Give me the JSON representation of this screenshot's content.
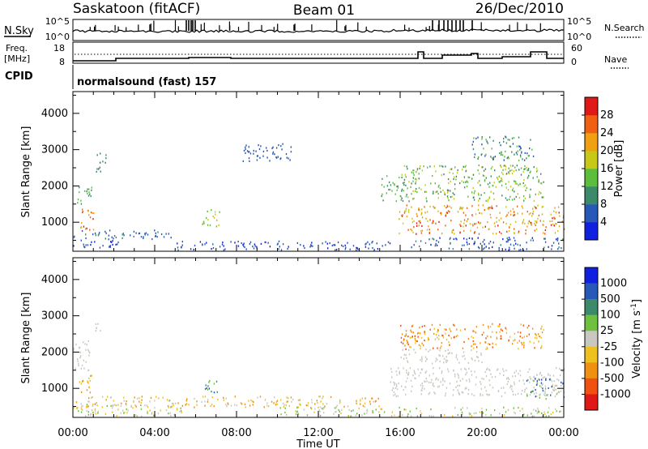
{
  "header": {
    "station": "Saskatoon (fitACF)",
    "beam": "Beam 01",
    "date": "26/Dec/2010"
  },
  "strip": {
    "nsky_label": "N.Sky",
    "nsky_ticks": [
      "10^5",
      "10^0"
    ],
    "nsearch_ticks": [
      "10^5",
      "10^0"
    ],
    "nsearch_label": "N.Search",
    "freq_label_1": "Freq.",
    "freq_label_2": "[MHz]",
    "freq_ticks": [
      "18",
      "8"
    ],
    "nave_ticks": [
      "60",
      "0"
    ],
    "nave_label": "Nave",
    "cpid_label": "CPID",
    "cpid_text": "normalsound (fast) 157"
  },
  "colors": {
    "power": [
      "#1020e0",
      "#2858b8",
      "#3c8a6a",
      "#5cbf3c",
      "#c8c818",
      "#f0a010",
      "#f06010",
      "#e01818"
    ],
    "velocity": [
      "#e01818",
      "#f05010",
      "#f09010",
      "#f0c020",
      "#c8c8c0",
      "#70c040",
      "#3c8a6a",
      "#2858b8",
      "#1020e0"
    ]
  },
  "chart_data": [
    {
      "type": "heatmap",
      "name": "power",
      "ylabel": "Slant Range [km]",
      "yticks": [
        "1000",
        "2000",
        "3000",
        "4000"
      ],
      "ylim": [
        200,
        4600
      ],
      "xlim": [
        0,
        24
      ],
      "colorbar_label": "Power [dB]",
      "colorbar_ticks": [
        "4",
        "8",
        "12",
        "16",
        "20",
        "24",
        "28"
      ],
      "colorbar_range": [
        0,
        32
      ],
      "regions": [
        {
          "t0": 0.0,
          "t1": 2.2,
          "r0": 300,
          "r1": 550,
          "v": [
            2,
            6
          ]
        },
        {
          "t0": 0.0,
          "t1": 5.0,
          "r0": 550,
          "r1": 800,
          "v": [
            4,
            9
          ]
        },
        {
          "t0": 0.2,
          "t1": 1.0,
          "r0": 800,
          "r1": 1400,
          "v": [
            18,
            30
          ]
        },
        {
          "t0": 0.2,
          "t1": 0.9,
          "r0": 1500,
          "r1": 2100,
          "v": [
            8,
            16
          ]
        },
        {
          "t0": 1.1,
          "t1": 1.6,
          "r0": 2400,
          "r1": 3000,
          "v": [
            6,
            12
          ]
        },
        {
          "t0": 6.3,
          "t1": 7.2,
          "r0": 900,
          "r1": 1400,
          "v": [
            12,
            22
          ]
        },
        {
          "t0": 5.0,
          "t1": 15.5,
          "r0": 250,
          "r1": 500,
          "v": [
            2,
            8
          ]
        },
        {
          "t0": 8.3,
          "t1": 10.8,
          "r0": 2700,
          "r1": 3200,
          "v": [
            4,
            8
          ]
        },
        {
          "t0": 15.0,
          "t1": 16.3,
          "r0": 1600,
          "r1": 2300,
          "v": [
            8,
            16
          ]
        },
        {
          "t0": 15.9,
          "t1": 24.0,
          "r0": 700,
          "r1": 1500,
          "v": [
            16,
            30
          ]
        },
        {
          "t0": 16.0,
          "t1": 23.0,
          "r0": 1600,
          "r1": 2600,
          "v": [
            8,
            20
          ]
        },
        {
          "t0": 16.5,
          "t1": 24.0,
          "r0": 250,
          "r1": 600,
          "v": [
            2,
            10
          ]
        },
        {
          "t0": 19.5,
          "t1": 22.5,
          "r0": 2700,
          "r1": 3400,
          "v": [
            6,
            14
          ]
        }
      ]
    },
    {
      "type": "heatmap",
      "name": "velocity",
      "ylabel": "Slant Range [km]",
      "yticks": [
        "1000",
        "2000",
        "3000",
        "4000"
      ],
      "ylim": [
        200,
        4600
      ],
      "xlim": [
        0,
        24
      ],
      "xticks": [
        "00:00",
        "04:00",
        "08:00",
        "12:00",
        "16:00",
        "20:00",
        "00:00"
      ],
      "xlabel": "Time UT",
      "colorbar_label": "Velocity [m s",
      "colorbar_label_sup": "-1",
      "colorbar_label_end": "]",
      "colorbar_ticks": [
        "1000",
        "500",
        "100",
        "25",
        "-25",
        "-100",
        "-500",
        "-1000"
      ],
      "regions": [
        {
          "t0": 0.0,
          "t1": 5.5,
          "r0": 250,
          "r1": 600,
          "c": [
            4,
            5,
            3
          ]
        },
        {
          "t0": 0.0,
          "t1": 15.0,
          "r0": 500,
          "r1": 800,
          "c": [
            3,
            4,
            2
          ]
        },
        {
          "t0": 0.2,
          "t1": 1.0,
          "r0": 900,
          "r1": 1400,
          "c": [
            2,
            3
          ]
        },
        {
          "t0": 0.0,
          "t1": 0.8,
          "r0": 1500,
          "r1": 2400,
          "c": [
            4
          ]
        },
        {
          "t0": 1.0,
          "t1": 1.4,
          "r0": 2600,
          "r1": 3000,
          "c": [
            4
          ]
        },
        {
          "t0": 6.4,
          "t1": 7.1,
          "r0": 900,
          "r1": 1350,
          "c": [
            6,
            7,
            5
          ]
        },
        {
          "t0": 15.5,
          "t1": 24.0,
          "r0": 800,
          "r1": 1600,
          "c": [
            4
          ]
        },
        {
          "t0": 16.0,
          "t1": 23.0,
          "r0": 2100,
          "r1": 2800,
          "c": [
            2,
            1,
            3
          ]
        },
        {
          "t0": 16.0,
          "t1": 20.0,
          "r0": 1700,
          "r1": 2100,
          "c": [
            4
          ]
        },
        {
          "t0": 22.0,
          "t1": 24.0,
          "r0": 700,
          "r1": 1300,
          "c": [
            5,
            4,
            7
          ]
        },
        {
          "t0": 10.0,
          "t1": 24.0,
          "r0": 250,
          "r1": 500,
          "c": [
            5,
            3,
            4
          ]
        }
      ]
    }
  ]
}
